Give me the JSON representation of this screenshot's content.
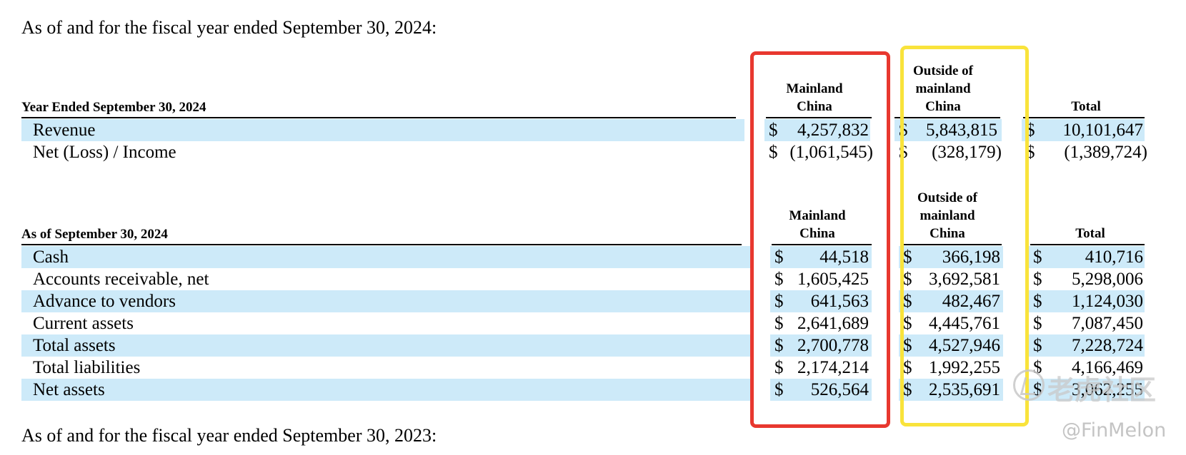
{
  "heading_2024": "As of and for the fiscal year ended September 30, 2024:",
  "heading_2023": "As of and for the fiscal year ended September 30, 2023:",
  "income_table": {
    "title": "Year Ended September 30, 2024",
    "columns": [
      {
        "lines": [
          "Mainland",
          "China"
        ]
      },
      {
        "lines": [
          "Outside of",
          "mainland",
          "China"
        ]
      },
      {
        "lines": [
          "Total"
        ]
      }
    ],
    "rows": [
      {
        "label": "Revenue",
        "cur": [
          "$",
          "$",
          "$"
        ],
        "values": [
          "4,257,832",
          "5,843,815",
          "10,101,647"
        ]
      },
      {
        "label": "Net (Loss) / Income",
        "cur": [
          "$",
          "$",
          "$"
        ],
        "values": [
          "(1,061,545)",
          "(328,179)",
          "(1,389,724)"
        ]
      }
    ]
  },
  "balance_table": {
    "title": "As of September 30, 2024",
    "columns": [
      {
        "lines": [
          "Mainland",
          "China"
        ]
      },
      {
        "lines": [
          "Outside of",
          "mainland",
          "China"
        ]
      },
      {
        "lines": [
          "Total"
        ]
      }
    ],
    "rows": [
      {
        "label": "Cash",
        "cur": [
          "$",
          "$",
          "$"
        ],
        "values": [
          "44,518",
          "366,198",
          "410,716"
        ]
      },
      {
        "label": "Accounts receivable, net",
        "cur": [
          "$",
          "$",
          "$"
        ],
        "values": [
          "1,605,425",
          "3,692,581",
          "5,298,006"
        ]
      },
      {
        "label": "Advance to vendors",
        "cur": [
          "$",
          "$",
          "$"
        ],
        "values": [
          "641,563",
          "482,467",
          "1,124,030"
        ]
      },
      {
        "label": "Current assets",
        "cur": [
          "$",
          "$",
          "$"
        ],
        "values": [
          "2,641,689",
          "4,445,761",
          "7,087,450"
        ]
      },
      {
        "label": "Total assets",
        "cur": [
          "$",
          "$",
          "$"
        ],
        "values": [
          "2,700,778",
          "4,527,946",
          "7,228,724"
        ]
      },
      {
        "label": "Total liabilities",
        "cur": [
          "$",
          "$",
          "$"
        ],
        "values": [
          "2,174,214",
          "1,992,255",
          "4,166,469"
        ]
      },
      {
        "label": "Net assets",
        "cur": [
          "$",
          "$",
          "$"
        ],
        "values": [
          "526,564",
          "2,535,691",
          "3,062,255"
        ]
      }
    ]
  },
  "highlight_colors": {
    "mainland_box": "#e8382f",
    "outside_box": "#f9e33b",
    "row_shading": "#cdeaf9"
  },
  "watermark": {
    "logo_text": "老虎社区",
    "handle": "@FinMelon",
    "icon": "tiger-logo-icon"
  }
}
